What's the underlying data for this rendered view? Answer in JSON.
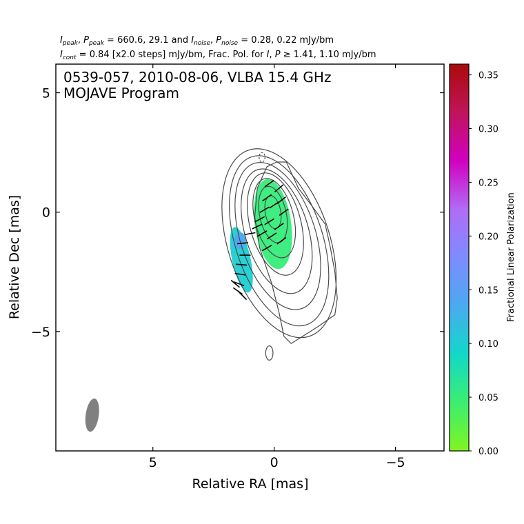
{
  "header": {
    "line1": {
      "i_sym": "I",
      "i_sub": "peak",
      "p_sym": "P",
      "p_sub": "peak",
      "peak_text": " = 660.6, 29.1 and ",
      "noise_i_sym": "I",
      "noise_i_sub": "noise",
      "noise_p_sym": "P",
      "noise_p_sub": "noise",
      "noise_text": " = 0.28, 0.22 mJy/bm"
    },
    "line2": {
      "cont_sym": "I",
      "cont_sub": "cont",
      "cont_text": " = 0.84 [x2.0 steps] mJy/bm, Frac. Pol. for ",
      "fp_i": "I",
      "fp_p": "P",
      "fp_text": " ≥  1.41, 1.10 mJy/bm"
    }
  },
  "chart_data": {
    "type": "heatmap",
    "title_line1": "0539-057, 2010-08-06, VLBA 15.4 GHz",
    "title_line2": "MOJAVE Program",
    "xlabel": "Relative RA [mas]",
    "ylabel": "Relative Dec [mas]",
    "xlim": [
      9,
      -7
    ],
    "ylim": [
      -10,
      6.2
    ],
    "x_ticks": [
      5,
      0,
      -5
    ],
    "x_tick_labels": [
      "5",
      "0",
      "−5"
    ],
    "y_ticks": [
      5,
      0,
      -5
    ],
    "y_tick_labels": [
      "5",
      "0",
      "−5"
    ],
    "colorbar": {
      "label": "Fractional Linear Polarization",
      "range": [
        0.0,
        0.36
      ],
      "ticks": [
        0.0,
        0.05,
        0.1,
        0.15,
        0.2,
        0.25,
        0.3,
        0.35
      ],
      "tick_labels": [
        "0.00",
        "0.05",
        "0.10",
        "0.15",
        "0.20",
        "0.25",
        "0.30",
        "0.35"
      ],
      "colors": [
        "#80f520",
        "#3bee70",
        "#12d8c9",
        "#4aaaf0",
        "#7e8cff",
        "#b06cf4",
        "#d200c0",
        "#c0145a",
        "#ab0a0a"
      ]
    },
    "contour_color": "#4a4a4a",
    "contours": [
      {
        "cx": -0.2,
        "cy": -1.3,
        "rx": 2.1,
        "ry": 4.1,
        "rot": -18
      },
      {
        "cx": -0.2,
        "cy": -1.2,
        "rx": 1.8,
        "ry": 3.7,
        "rot": -18
      },
      {
        "cx": -0.15,
        "cy": -1.0,
        "rx": 1.55,
        "ry": 3.2,
        "rot": -18
      },
      {
        "cx": -0.1,
        "cy": -0.8,
        "rx": 1.3,
        "ry": 2.7,
        "rot": -17
      },
      {
        "cx": -0.05,
        "cy": -0.5,
        "rx": 1.05,
        "ry": 2.2,
        "rot": -15
      },
      {
        "cx": 0.0,
        "cy": -0.25,
        "rx": 0.8,
        "ry": 1.7,
        "rot": -14
      },
      {
        "cx": 0.05,
        "cy": -0.1,
        "rx": 0.55,
        "ry": 1.2,
        "rot": -12
      },
      {
        "cx": 0.05,
        "cy": 0.0,
        "rx": 0.32,
        "ry": 0.7,
        "rot": -10
      }
    ],
    "outer_contour": [
      [
        -0.5,
        2.1
      ],
      [
        -1.0,
        1.0
      ],
      [
        -1.6,
        0.2
      ],
      [
        -2.1,
        -0.5
      ],
      [
        -2.3,
        -1.4
      ],
      [
        -2.5,
        -2.5
      ],
      [
        -2.6,
        -3.6
      ],
      [
        -2.5,
        -4.3
      ],
      [
        -1.8,
        -4.8
      ],
      [
        -0.7,
        -5.5
      ],
      [
        -0.4,
        -5.2
      ],
      [
        -0.2,
        -4.2
      ],
      [
        0.1,
        -3.0
      ],
      [
        0.6,
        -1.5
      ],
      [
        0.8,
        -0.2
      ],
      [
        0.7,
        1.0
      ],
      [
        0.3,
        1.9
      ],
      [
        -0.1,
        2.1
      ]
    ],
    "negative_contour": {
      "cx": 0.5,
      "cy": 2.3,
      "rx": 0.12,
      "ry": 0.2
    },
    "small_contour": {
      "cx": 0.2,
      "cy": -5.9,
      "rx": 0.15,
      "ry": 0.3
    },
    "fracpol_regions": [
      {
        "cx": 0.05,
        "cy": -0.5,
        "rx": 0.75,
        "ry": 1.9,
        "rot": -8,
        "value": 0.05
      },
      {
        "cx": 1.35,
        "cy": -2.0,
        "rx": 0.38,
        "ry": 1.4,
        "rot": -12,
        "value": 0.1
      },
      {
        "cx": 1.4,
        "cy": -1.2,
        "rx": 0.25,
        "ry": 0.35,
        "rot": 0,
        "value": 0.14
      }
    ],
    "evpa_ticks": [
      {
        "x": 0.2,
        "y": 1.2,
        "angle": 35
      },
      {
        "x": -0.2,
        "y": 1.0,
        "angle": 40
      },
      {
        "x": 0.3,
        "y": 0.6,
        "angle": 35
      },
      {
        "x": -0.3,
        "y": 0.5,
        "angle": 38
      },
      {
        "x": 0.4,
        "y": 0.1,
        "angle": 30
      },
      {
        "x": -0.4,
        "y": 0.0,
        "angle": 35
      },
      {
        "x": 0.0,
        "y": 0.3,
        "angle": 33
      },
      {
        "x": 0.6,
        "y": -0.3,
        "angle": 28
      },
      {
        "x": 0.2,
        "y": -0.4,
        "angle": 32
      },
      {
        "x": -0.2,
        "y": -0.6,
        "angle": 35
      },
      {
        "x": 0.5,
        "y": -0.9,
        "angle": 30
      },
      {
        "x": 0.1,
        "y": -1.0,
        "angle": 33
      },
      {
        "x": -0.3,
        "y": -1.2,
        "angle": 36
      },
      {
        "x": 0.3,
        "y": -1.5,
        "angle": 30
      },
      {
        "x": 0.7,
        "y": -0.6,
        "angle": 25
      },
      {
        "x": 1.0,
        "y": -0.9,
        "angle": 10
      },
      {
        "x": 1.3,
        "y": -1.3,
        "angle": 5
      },
      {
        "x": 1.2,
        "y": -1.8,
        "angle": 0
      },
      {
        "x": 1.35,
        "y": -2.2,
        "angle": -5
      },
      {
        "x": 1.4,
        "y": -2.6,
        "angle": -8
      },
      {
        "x": 1.45,
        "y": -3.0,
        "angle": -20
      },
      {
        "x": 1.5,
        "y": -3.3,
        "angle": -35
      },
      {
        "x": 1.3,
        "y": -3.5,
        "angle": -45
      },
      {
        "x": 1.6,
        "y": -3.0,
        "angle": -40
      }
    ],
    "beam": {
      "cx": 7.5,
      "cy": -8.5,
      "rx": 0.27,
      "ry": 0.7,
      "rot": 8,
      "color": "#808080"
    }
  }
}
